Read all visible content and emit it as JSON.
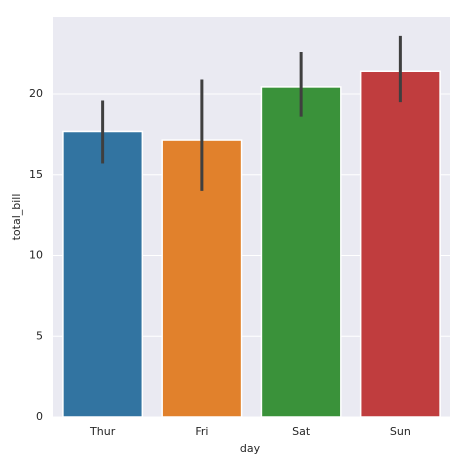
{
  "chart_data": {
    "type": "bar",
    "xlabel": "day",
    "ylabel": "total_bill",
    "categories": [
      "Thur",
      "Fri",
      "Sat",
      "Sun"
    ],
    "values": [
      17.68,
      17.15,
      20.44,
      21.41
    ],
    "ci_low": [
      15.7,
      14.0,
      18.6,
      19.5
    ],
    "ci_high": [
      19.6,
      20.9,
      22.6,
      23.6
    ],
    "colors": [
      "#3274a1",
      "#e1812c",
      "#3a923a",
      "#c03d3e"
    ],
    "ylim": [
      0,
      24.77
    ],
    "yticks": [
      0,
      5,
      10,
      15,
      20
    ],
    "grid": true
  }
}
